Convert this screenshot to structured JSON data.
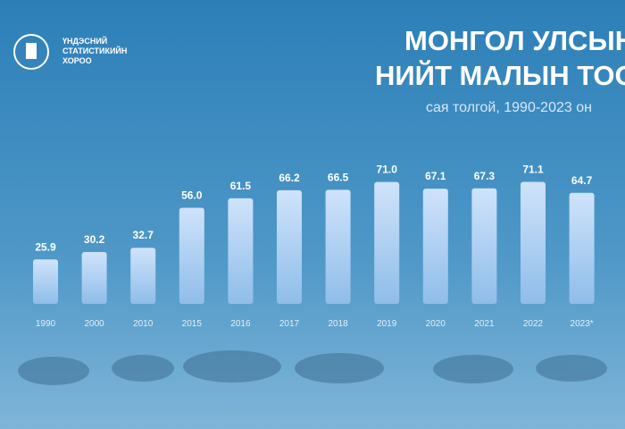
{
  "logo": {
    "lines": [
      "ҮНДЭСНИЙ",
      "СТАТИСТИКИЙН",
      "ХОРОО"
    ]
  },
  "chart_data": {
    "type": "bar",
    "title": [
      "МОНГОЛ УЛСЫН",
      "НИЙТ МАЛЫН ТОО"
    ],
    "subtitle": "сая толгой, 1990-2023 он",
    "categories": [
      "1990",
      "2000",
      "2010",
      "2015",
      "2016",
      "2017",
      "2018",
      "2019",
      "2020",
      "2021",
      "2022",
      "2023*"
    ],
    "values": [
      25.9,
      30.2,
      32.7,
      56.0,
      61.5,
      66.2,
      66.5,
      71.0,
      67.1,
      67.3,
      71.1,
      64.7
    ],
    "value_labels": [
      "25.9",
      "30.2",
      "32.7",
      "56.0",
      "61.5",
      "66.2",
      "66.5",
      "71.0",
      "67.1",
      "67.3",
      "71.1",
      "64.7"
    ],
    "color": "#a9cdf3"
  }
}
